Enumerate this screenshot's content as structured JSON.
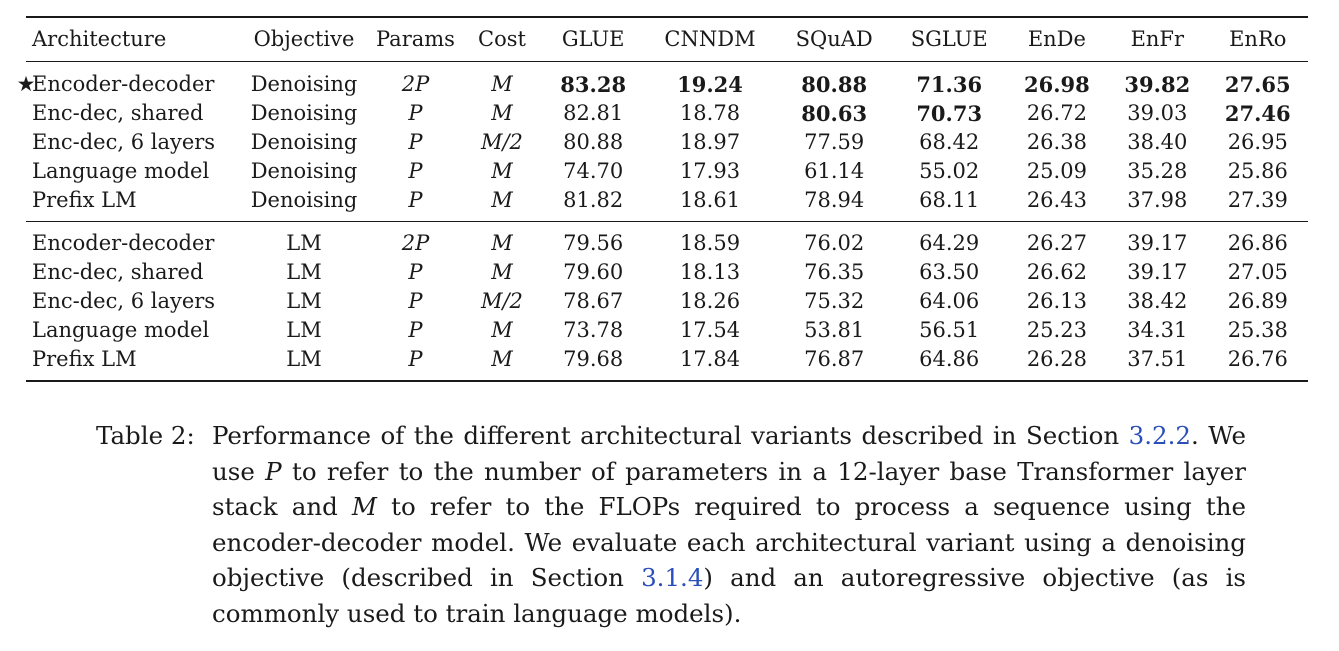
{
  "table": {
    "headers": [
      "Architecture",
      "Objective",
      "Params",
      "Cost",
      "GLUE",
      "CNNDM",
      "SQuAD",
      "SGLUE",
      "EnDe",
      "EnFr",
      "EnRo"
    ],
    "star_glyph": "★",
    "group1": [
      {
        "starred": true,
        "architecture": "Encoder-decoder",
        "objective": "Denoising",
        "params": "2P",
        "cost": "M",
        "values": [
          "83.28",
          "19.24",
          "80.88",
          "71.36",
          "26.98",
          "39.82",
          "27.65"
        ],
        "bold": [
          true,
          true,
          true,
          true,
          true,
          true,
          true
        ]
      },
      {
        "starred": false,
        "architecture": "Enc-dec, shared",
        "objective": "Denoising",
        "params": "P",
        "cost": "M",
        "values": [
          "82.81",
          "18.78",
          "80.63",
          "70.73",
          "26.72",
          "39.03",
          "27.46"
        ],
        "bold": [
          false,
          false,
          true,
          true,
          false,
          false,
          true
        ]
      },
      {
        "starred": false,
        "architecture": "Enc-dec, 6 layers",
        "objective": "Denoising",
        "params": "P",
        "cost": "M/2",
        "values": [
          "80.88",
          "18.97",
          "77.59",
          "68.42",
          "26.38",
          "38.40",
          "26.95"
        ],
        "bold": [
          false,
          false,
          false,
          false,
          false,
          false,
          false
        ]
      },
      {
        "starred": false,
        "architecture": "Language model",
        "objective": "Denoising",
        "params": "P",
        "cost": "M",
        "values": [
          "74.70",
          "17.93",
          "61.14",
          "55.02",
          "25.09",
          "35.28",
          "25.86"
        ],
        "bold": [
          false,
          false,
          false,
          false,
          false,
          false,
          false
        ]
      },
      {
        "starred": false,
        "architecture": "Prefix LM",
        "objective": "Denoising",
        "params": "P",
        "cost": "M",
        "values": [
          "81.82",
          "18.61",
          "78.94",
          "68.11",
          "26.43",
          "37.98",
          "27.39"
        ],
        "bold": [
          false,
          false,
          false,
          false,
          false,
          false,
          false
        ]
      }
    ],
    "group2": [
      {
        "starred": false,
        "architecture": "Encoder-decoder",
        "objective": "LM",
        "params": "2P",
        "cost": "M",
        "values": [
          "79.56",
          "18.59",
          "76.02",
          "64.29",
          "26.27",
          "39.17",
          "26.86"
        ],
        "bold": [
          false,
          false,
          false,
          false,
          false,
          false,
          false
        ]
      },
      {
        "starred": false,
        "architecture": "Enc-dec, shared",
        "objective": "LM",
        "params": "P",
        "cost": "M",
        "values": [
          "79.60",
          "18.13",
          "76.35",
          "63.50",
          "26.62",
          "39.17",
          "27.05"
        ],
        "bold": [
          false,
          false,
          false,
          false,
          false,
          false,
          false
        ]
      },
      {
        "starred": false,
        "architecture": "Enc-dec, 6 layers",
        "objective": "LM",
        "params": "P",
        "cost": "M/2",
        "values": [
          "78.67",
          "18.26",
          "75.32",
          "64.06",
          "26.13",
          "38.42",
          "26.89"
        ],
        "bold": [
          false,
          false,
          false,
          false,
          false,
          false,
          false
        ]
      },
      {
        "starred": false,
        "architecture": "Language model",
        "objective": "LM",
        "params": "P",
        "cost": "M",
        "values": [
          "73.78",
          "17.54",
          "53.81",
          "56.51",
          "25.23",
          "34.31",
          "25.38"
        ],
        "bold": [
          false,
          false,
          false,
          false,
          false,
          false,
          false
        ]
      },
      {
        "starred": false,
        "architecture": "Prefix LM",
        "objective": "LM",
        "params": "P",
        "cost": "M",
        "values": [
          "79.68",
          "17.84",
          "76.87",
          "64.86",
          "26.28",
          "37.51",
          "26.76"
        ],
        "bold": [
          false,
          false,
          false,
          false,
          false,
          false,
          false
        ]
      }
    ]
  },
  "caption": {
    "label": "Table 2:",
    "t1": "Performance of the different architectural variants described in Section ",
    "ref1": "3.2.2",
    "t2": ". We use ",
    "var_p": "P",
    "t3": " to refer to the number of parameters in a 12-layer base Transformer layer stack and ",
    "var_m": "M",
    "t4": " to refer to the FLOPs required to process a sequence using the encoder-decoder model. We evaluate each architectural variant using a denoising objective (described in Section ",
    "ref2": "3.1.4",
    "t5": ") and an autoregressive objective (as is commonly used to train language models).",
    "ref_color": "#2a4fb8"
  }
}
